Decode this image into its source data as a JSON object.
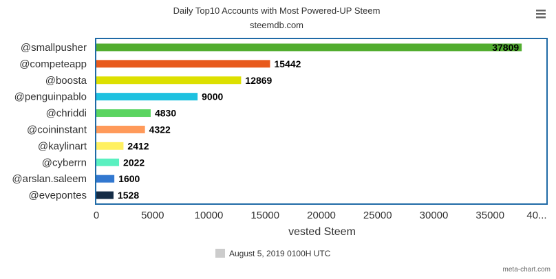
{
  "chart_data": {
    "type": "bar",
    "orientation": "horizontal",
    "title": "Daily Top10 Accounts with Most Powered-UP Steem",
    "subtitle": "steemdb.com",
    "xlabel": "vested Steem",
    "ylabel": "",
    "xlim": [
      0,
      40000
    ],
    "x_ticks": [
      "0",
      "5000",
      "10000",
      "15000",
      "20000",
      "25000",
      "30000",
      "35000",
      "40..."
    ],
    "grid": false,
    "legend_position": "bottom",
    "legend_entry": "August 5, 2019 0100H UTC",
    "categories": [
      "@smallpusher",
      "@competeapp",
      "@boosta",
      "@penguinpablo",
      "@chriddi",
      "@coininstant",
      "@kaylinart",
      "@cyberrn",
      "@arslan.saleem",
      "@evepontes"
    ],
    "values": [
      37809,
      15442,
      12869,
      9000,
      4830,
      4322,
      2412,
      2022,
      1600,
      1528
    ],
    "colors": [
      "#52ad2f",
      "#e85a1c",
      "#dde000",
      "#1ec1e0",
      "#5ad460",
      "#ff9a5a",
      "#fff060",
      "#5af0c0",
      "#3278d0",
      "#152c46"
    ],
    "credit": "meta-chart.com"
  },
  "colors": {
    "frame": "#1f6aa6",
    "axis": "#333333",
    "legend_swatch": "#cccccc"
  },
  "icons": {
    "menu": "hamburger-menu-icon"
  }
}
